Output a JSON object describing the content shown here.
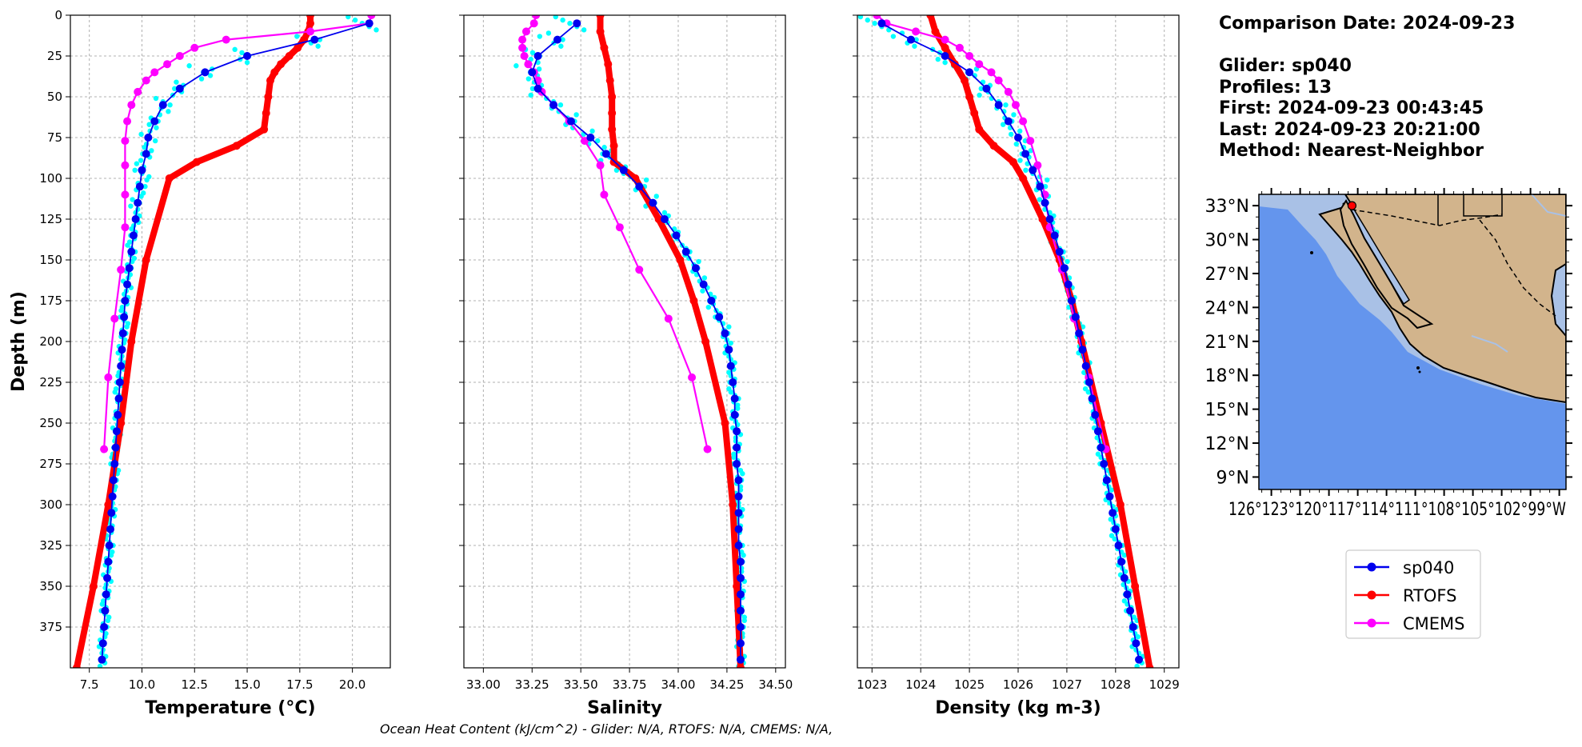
{
  "colors": {
    "glider": "#0000ee",
    "glider_raw": "#00ffff",
    "rtofs": "#ff0000",
    "cmems": "#ff00ff",
    "ocean": "#6495ed",
    "land": "#d2b48c",
    "shelf": "#a9c1e6"
  },
  "info": {
    "comparison_date": "Comparison Date: 2024-09-23",
    "glider": "Glider: sp040",
    "profiles": "Profiles: 13",
    "first": "First: 2024-09-23 00:43:45",
    "last": "Last: 2024-09-23 20:21:00",
    "method": "Method: Nearest-Neighbor"
  },
  "footer": "Ocean Heat Content (kJ/cm^2) - Glider: N/A,  RTOFS: N/A,  CMEMS: N/A,",
  "legend": [
    {
      "name": "sp040",
      "color": "#0000ee"
    },
    {
      "name": "RTOFS",
      "color": "#ff0000"
    },
    {
      "name": "CMEMS",
      "color": "#ff00ff"
    }
  ],
  "map": {
    "lat_labels": [
      "33°N",
      "30°N",
      "27°N",
      "24°N",
      "21°N",
      "18°N",
      "15°N",
      "12°N",
      "9°N"
    ],
    "lon_labels": "126°123°120°117°114°111°108°105°102°99°W",
    "glider_position": {
      "lon": -117.6,
      "lat": 33.0
    }
  },
  "chart_data": [
    {
      "type": "line",
      "xlabel": "Temperature (°C)",
      "ylabel": "Depth (m)",
      "xlim": [
        6.6,
        21.8
      ],
      "ylim": [
        400,
        0
      ],
      "xticks": [
        7.5,
        10.0,
        12.5,
        15.0,
        17.5,
        20.0
      ],
      "xtick_labels": [
        "7.5",
        "10.0",
        "12.5",
        "15.0",
        "17.5",
        "20.0"
      ],
      "yticks": [
        0,
        25,
        50,
        75,
        100,
        125,
        150,
        175,
        200,
        225,
        250,
        275,
        300,
        325,
        350,
        375
      ],
      "grid": true,
      "series": [
        {
          "name": "sp040",
          "depth": [
            5,
            15,
            25,
            35,
            45,
            55,
            65,
            75,
            85,
            95,
            105,
            115,
            125,
            135,
            145,
            155,
            165,
            175,
            185,
            195,
            205,
            215,
            225,
            235,
            245,
            255,
            265,
            275,
            285,
            295,
            305,
            315,
            325,
            335,
            345,
            355,
            365,
            375,
            385,
            395
          ],
          "values": [
            20.8,
            18.2,
            15.0,
            13.0,
            11.8,
            11.0,
            10.6,
            10.3,
            10.2,
            10.0,
            9.9,
            9.8,
            9.7,
            9.6,
            9.5,
            9.4,
            9.3,
            9.2,
            9.15,
            9.1,
            9.05,
            9.0,
            8.95,
            8.9,
            8.85,
            8.8,
            8.75,
            8.7,
            8.65,
            8.6,
            8.55,
            8.5,
            8.45,
            8.4,
            8.35,
            8.3,
            8.25,
            8.2,
            8.15,
            8.1
          ]
        },
        {
          "name": "RTOFS",
          "depth": [
            0,
            5,
            10,
            15,
            20,
            25,
            30,
            35,
            40,
            50,
            60,
            70,
            80,
            90,
            100,
            150,
            200,
            250,
            300,
            350,
            400
          ],
          "values": [
            18.0,
            18.0,
            17.9,
            17.7,
            17.4,
            17.0,
            16.6,
            16.3,
            16.1,
            16.0,
            15.9,
            15.8,
            14.5,
            12.6,
            11.3,
            10.2,
            9.5,
            9.0,
            8.4,
            7.7,
            6.9
          ]
        },
        {
          "name": "CMEMS",
          "depth": [
            0,
            5,
            10,
            15,
            20,
            25,
            30,
            35,
            40,
            47,
            55,
            65,
            77,
            92,
            110,
            130,
            156,
            186,
            222,
            266
          ],
          "values": [
            20.9,
            20.8,
            18.0,
            14.0,
            12.5,
            11.8,
            11.2,
            10.6,
            10.2,
            9.8,
            9.5,
            9.3,
            9.2,
            9.2,
            9.2,
            9.2,
            9.0,
            8.7,
            8.4,
            8.2
          ]
        }
      ]
    },
    {
      "type": "line",
      "xlabel": "Salinity",
      "ylabel": "Depth (m)",
      "xlim": [
        32.9,
        34.55
      ],
      "ylim": [
        400,
        0
      ],
      "xticks": [
        33.0,
        33.25,
        33.5,
        33.75,
        34.0,
        34.25,
        34.5
      ],
      "xtick_labels": [
        "33.00",
        "33.25",
        "33.50",
        "33.75",
        "34.00",
        "34.25",
        "34.50"
      ],
      "yticks": [
        0,
        25,
        50,
        75,
        100,
        125,
        150,
        175,
        200,
        225,
        250,
        275,
        300,
        325,
        350,
        375
      ],
      "grid": true,
      "series": [
        {
          "name": "sp040",
          "depth": [
            5,
            15,
            25,
            35,
            45,
            55,
            65,
            75,
            85,
            95,
            105,
            115,
            125,
            135,
            145,
            155,
            165,
            175,
            185,
            195,
            205,
            215,
            225,
            235,
            245,
            255,
            265,
            275,
            285,
            295,
            305,
            315,
            325,
            335,
            345,
            355,
            365,
            375,
            385,
            395
          ],
          "values": [
            33.48,
            33.38,
            33.28,
            33.25,
            33.28,
            33.36,
            33.45,
            33.55,
            33.63,
            33.72,
            33.8,
            33.87,
            33.93,
            33.99,
            34.04,
            34.09,
            34.13,
            34.17,
            34.21,
            34.24,
            34.26,
            34.27,
            34.28,
            34.29,
            34.29,
            34.3,
            34.3,
            34.3,
            34.31,
            34.31,
            34.31,
            34.31,
            34.31,
            34.32,
            34.32,
            34.32,
            34.32,
            34.32,
            34.32,
            34.32
          ]
        },
        {
          "name": "RTOFS",
          "depth": [
            0,
            10,
            20,
            30,
            40,
            50,
            60,
            70,
            80,
            90,
            100,
            125,
            150,
            175,
            200,
            250,
            300,
            350,
            400
          ],
          "values": [
            33.6,
            33.6,
            33.62,
            33.64,
            33.65,
            33.66,
            33.66,
            33.66,
            33.67,
            33.67,
            33.78,
            33.9,
            34.01,
            34.08,
            34.14,
            34.24,
            34.28,
            34.3,
            34.32
          ]
        },
        {
          "name": "CMEMS",
          "depth": [
            0,
            5,
            10,
            15,
            20,
            25,
            30,
            35,
            40,
            47,
            55,
            65,
            77,
            92,
            110,
            130,
            156,
            186,
            222,
            266
          ],
          "values": [
            33.27,
            33.26,
            33.22,
            33.2,
            33.2,
            33.21,
            33.23,
            33.26,
            33.28,
            33.3,
            33.36,
            33.44,
            33.52,
            33.6,
            33.62,
            33.7,
            33.8,
            33.95,
            34.07,
            34.15
          ]
        }
      ]
    },
    {
      "type": "line",
      "xlabel": "Density (kg m-3)",
      "ylabel": "Depth (m)",
      "xlim": [
        1022.7,
        1029.3
      ],
      "ylim": [
        400,
        0
      ],
      "xticks": [
        1023,
        1024,
        1025,
        1026,
        1027,
        1028,
        1029
      ],
      "xtick_labels": [
        "1023",
        "1024",
        "1025",
        "1026",
        "1027",
        "1028",
        "1029"
      ],
      "yticks": [
        0,
        25,
        50,
        75,
        100,
        125,
        150,
        175,
        200,
        225,
        250,
        275,
        300,
        325,
        350,
        375
      ],
      "grid": true,
      "series": [
        {
          "name": "sp040",
          "depth": [
            5,
            15,
            25,
            35,
            45,
            55,
            65,
            75,
            85,
            95,
            105,
            115,
            125,
            135,
            145,
            155,
            165,
            175,
            185,
            195,
            205,
            215,
            225,
            235,
            245,
            255,
            265,
            275,
            285,
            295,
            305,
            315,
            325,
            335,
            345,
            355,
            365,
            375,
            385,
            395
          ],
          "values": [
            1023.2,
            1023.8,
            1024.5,
            1025.0,
            1025.35,
            1025.6,
            1025.8,
            1026.0,
            1026.15,
            1026.3,
            1026.45,
            1026.55,
            1026.65,
            1026.75,
            1026.85,
            1026.95,
            1027.03,
            1027.1,
            1027.18,
            1027.25,
            1027.32,
            1027.39,
            1027.46,
            1027.52,
            1027.58,
            1027.64,
            1027.7,
            1027.76,
            1027.82,
            1027.88,
            1027.94,
            1028.0,
            1028.06,
            1028.12,
            1028.18,
            1028.24,
            1028.3,
            1028.36,
            1028.42,
            1028.48
          ]
        },
        {
          "name": "RTOFS",
          "depth": [
            0,
            10,
            20,
            30,
            40,
            50,
            60,
            70,
            80,
            90,
            100,
            125,
            150,
            175,
            200,
            250,
            300,
            350,
            400
          ],
          "values": [
            1024.2,
            1024.3,
            1024.5,
            1024.7,
            1024.9,
            1025.0,
            1025.1,
            1025.2,
            1025.5,
            1025.9,
            1026.1,
            1026.5,
            1026.85,
            1027.1,
            1027.3,
            1027.7,
            1028.1,
            1028.4,
            1028.7
          ]
        },
        {
          "name": "CMEMS",
          "depth": [
            0,
            5,
            10,
            15,
            20,
            25,
            30,
            35,
            40,
            47,
            55,
            65,
            77,
            92,
            110,
            130,
            156,
            186,
            222,
            266
          ],
          "values": [
            1023.1,
            1023.3,
            1023.9,
            1024.5,
            1024.8,
            1025.0,
            1025.2,
            1025.45,
            1025.6,
            1025.8,
            1025.95,
            1026.1,
            1026.25,
            1026.4,
            1026.55,
            1026.65,
            1026.9,
            1027.15,
            1027.45,
            1027.8
          ]
        }
      ]
    }
  ]
}
